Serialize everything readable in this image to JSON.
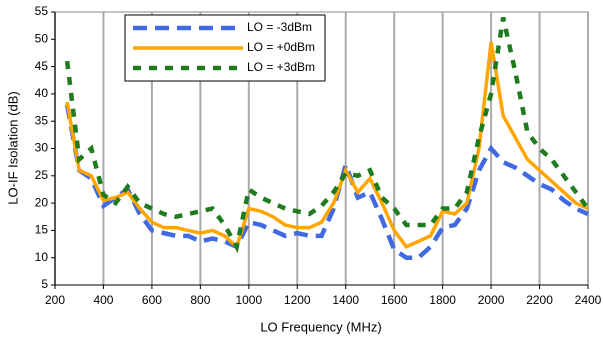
{
  "chart_data": {
    "type": "line",
    "x_label": "LO Frequency (MHz)",
    "y_label": "LO-IF Isolation (dB)",
    "x": [
      250,
      300,
      350,
      400,
      450,
      500,
      550,
      600,
      650,
      700,
      750,
      800,
      850,
      900,
      950,
      1000,
      1050,
      1100,
      1150,
      1200,
      1250,
      1300,
      1350,
      1400,
      1450,
      1500,
      1550,
      1600,
      1650,
      1700,
      1750,
      1800,
      1850,
      1900,
      1950,
      2000,
      2050,
      2100,
      2150,
      2200,
      2250,
      2300,
      2350,
      2400
    ],
    "series": [
      {
        "name": "LO = -3dBm",
        "color": "#4169e1",
        "dash": "14,8",
        "values": [
          38,
          26,
          24.5,
          19.5,
          21,
          22.5,
          18,
          15,
          14.5,
          14,
          14,
          13,
          13.5,
          13,
          12,
          16.5,
          16,
          15,
          14,
          14.5,
          14,
          14,
          19,
          27,
          21,
          22,
          17,
          11.5,
          10,
          10,
          12,
          15.5,
          16,
          19,
          26,
          30,
          27.5,
          26.5,
          25,
          23.5,
          22.5,
          20.5,
          19,
          18
        ]
      },
      {
        "name": "LO = +0dBm",
        "color": "#ffa500",
        "dash": "none",
        "values": [
          38.5,
          26,
          25,
          20.5,
          21,
          22,
          19,
          16.5,
          15.5,
          15.5,
          15,
          14.5,
          15,
          14,
          12,
          19,
          18.5,
          17.5,
          16,
          15.5,
          15.5,
          16.5,
          20,
          26,
          22,
          24.5,
          20,
          15,
          12,
          13,
          14,
          18.5,
          18,
          20,
          30,
          49.5,
          36,
          32,
          28,
          26,
          24,
          22,
          20,
          19
        ]
      },
      {
        "name": "LO = +3dBm",
        "color": "#1e7b1e",
        "dash": "8,8",
        "values": [
          46,
          28,
          30,
          21.5,
          20,
          23,
          20,
          19,
          18,
          17.5,
          18,
          18.5,
          19,
          16,
          12,
          22.5,
          21,
          20,
          19,
          18.5,
          18,
          19.5,
          22,
          25.5,
          25,
          26,
          21,
          19,
          16,
          16,
          16,
          19,
          19,
          22,
          32,
          40,
          54,
          44,
          33,
          30,
          28,
          25,
          22,
          19
        ]
      }
    ],
    "xlim": [
      200,
      2400
    ],
    "xticks": [
      200,
      400,
      600,
      800,
      1000,
      1200,
      1400,
      1600,
      1800,
      2000,
      2200,
      2400
    ],
    "ylim": [
      5,
      55
    ],
    "yticks": [
      5,
      10,
      15,
      20,
      25,
      30,
      35,
      40,
      45,
      50,
      55
    ],
    "grid": "x",
    "legend": "upper left"
  }
}
